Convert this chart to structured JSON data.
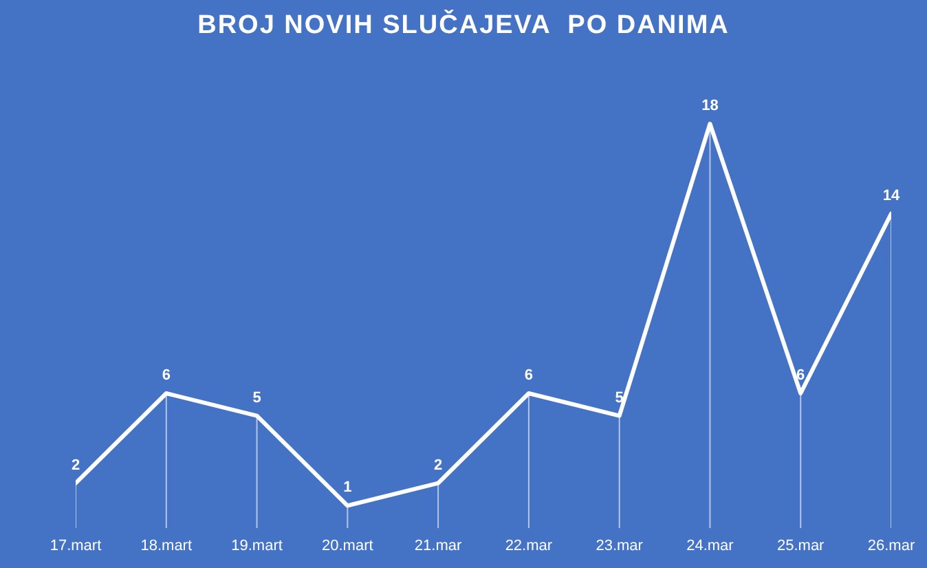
{
  "chart_data": {
    "type": "line",
    "title": "BROJ NOVIH SLUČAJEVA  PO DANIMA",
    "categories": [
      "17.mart",
      "18.mart",
      "19.mart",
      "20.mart",
      "21.mar",
      "22.mar",
      "23.mar",
      "24.mar",
      "25.mar",
      "26.mar"
    ],
    "series": [
      {
        "color": "#ffffff",
        "values": [
          2,
          6,
          5,
          1,
          2,
          6,
          5,
          18,
          6,
          14
        ]
      }
    ],
    "data_labels": true,
    "grid": "x",
    "legend": false,
    "line_style": "solid"
  }
}
